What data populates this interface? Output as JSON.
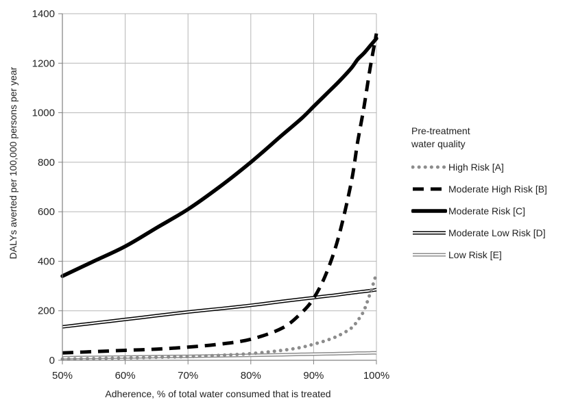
{
  "chart_data": {
    "type": "line",
    "title": "",
    "xlabel": "Adherence, % of total water consumed that is treated",
    "ylabel": "DALYs averted per 100,000 persons per year",
    "xlim": [
      50,
      100
    ],
    "ylim": [
      0,
      1400
    ],
    "grid": true,
    "legend_position": "right",
    "x_ticks": [
      50,
      60,
      70,
      80,
      90,
      100
    ],
    "x_tick_labels": [
      "50%",
      "60%",
      "70%",
      "80%",
      "90%",
      "100%"
    ],
    "y_ticks": [
      0,
      200,
      400,
      600,
      800,
      1000,
      1200,
      1400
    ],
    "y_tick_labels": [
      "0",
      "200",
      "400",
      "600",
      "800",
      "1000",
      "1200",
      "1400"
    ],
    "legend_title": [
      "Pre-treatment",
      "water quality"
    ],
    "x": [
      50,
      55,
      60,
      65,
      70,
      75,
      80,
      85,
      88,
      90,
      92,
      94,
      96,
      97,
      98,
      99,
      100
    ],
    "series": [
      {
        "name": "High Risk [A]",
        "style": "dotted",
        "color": "#8c8c8c",
        "values": [
          5,
          7,
          9,
          12,
          15,
          20,
          27,
          40,
          52,
          65,
          80,
          100,
          130,
          160,
          200,
          270,
          350
        ]
      },
      {
        "name": "Moderate High Risk [B]",
        "style": "dashed",
        "color": "#000000",
        "values": [
          30,
          35,
          40,
          45,
          53,
          65,
          85,
          130,
          190,
          250,
          350,
          500,
          720,
          880,
          1020,
          1180,
          1320
        ]
      },
      {
        "name": "Moderate Risk [C]",
        "style": "solid-thick",
        "color": "#000000",
        "values": [
          340,
          400,
          460,
          535,
          610,
          700,
          800,
          910,
          975,
          1025,
          1075,
          1125,
          1180,
          1215,
          1240,
          1270,
          1300
        ]
      },
      {
        "name": "Moderate Low Risk [D]",
        "style": "double",
        "color": "#000000",
        "values": [
          135,
          150,
          165,
          180,
          195,
          208,
          222,
          238,
          247,
          253,
          259,
          265,
          272,
          275,
          278,
          281,
          285
        ]
      },
      {
        "name": "Low Risk [E]",
        "style": "double",
        "color": "#8c8c8c",
        "values": [
          10,
          12,
          13,
          15,
          16,
          18,
          20,
          22,
          24,
          25,
          26,
          27,
          28,
          29,
          29,
          30,
          30
        ]
      }
    ]
  }
}
